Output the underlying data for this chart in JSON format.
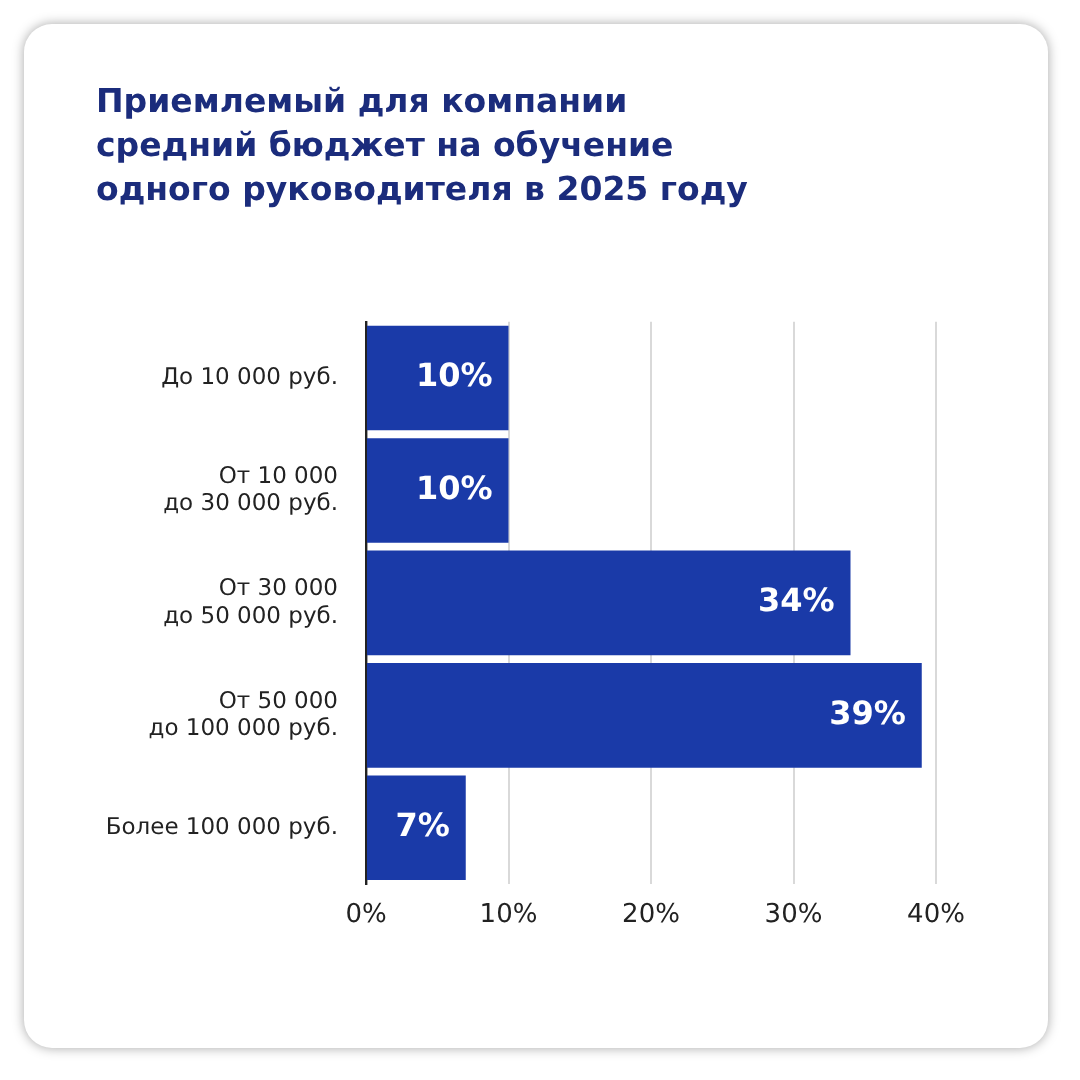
{
  "chart_data": {
    "type": "bar",
    "orientation": "horizontal",
    "title": "Приемлемый для компании средний бюджет на обучение одного руководителя в 2025 году",
    "categories": [
      "До 10 000 руб.",
      "От 10 000\nдо 30 000 руб.",
      "От 30 000\nдо 50 000 руб.",
      "От 50 000\nдо 100 000 руб.",
      "Более 100 000 руб."
    ],
    "values": [
      10,
      10,
      34,
      39,
      7
    ],
    "value_labels": [
      "10%",
      "10%",
      "34%",
      "39%",
      "7%"
    ],
    "color": "#1a3aa8",
    "xlim": [
      0,
      40
    ],
    "xticks": [
      {
        "value": 0,
        "label": "0%"
      },
      {
        "value": 10,
        "label": "10%"
      },
      {
        "value": 20,
        "label": "20%"
      },
      {
        "value": 30,
        "label": "30%"
      },
      {
        "value": 40,
        "label": "40%"
      }
    ],
    "grid": "x",
    "legend": false
  }
}
